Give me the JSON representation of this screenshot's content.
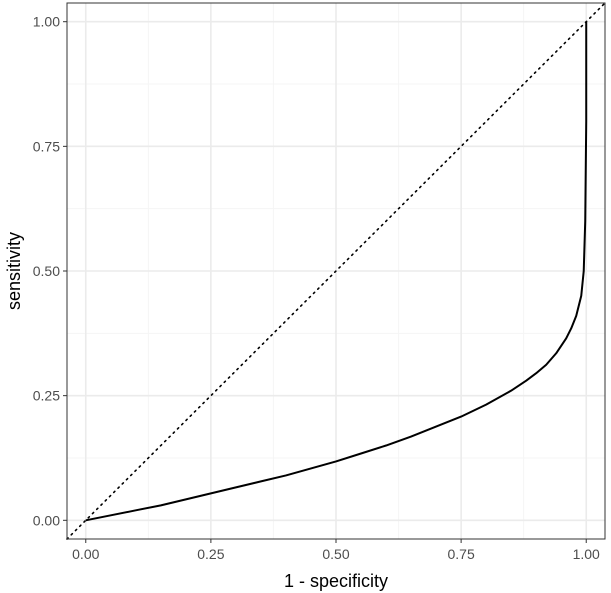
{
  "chart_data": {
    "type": "line",
    "title": "",
    "xlabel": "1 - specificity",
    "ylabel": "sensitivity",
    "xlim": [
      -0.0375,
      1.0375
    ],
    "ylim": [
      -0.0375,
      1.0375
    ],
    "x_ticks": [
      0.0,
      0.25,
      0.5,
      0.75,
      1.0
    ],
    "x_tick_labels": [
      "0.00",
      "0.25",
      "0.50",
      "0.75",
      "1.00"
    ],
    "y_ticks": [
      0.0,
      0.25,
      0.5,
      0.75,
      1.0
    ],
    "y_tick_labels": [
      "0.00",
      "0.25",
      "0.50",
      "0.75",
      "1.00"
    ],
    "grid": true,
    "legend": "none",
    "reference_line": {
      "style": "dotted",
      "x": [
        -0.0375,
        1.0375
      ],
      "y": [
        -0.0375,
        1.0375
      ]
    },
    "series": [
      {
        "style": "solid",
        "x": [
          0.0,
          0.05,
          0.1,
          0.15,
          0.2,
          0.25,
          0.3,
          0.35,
          0.4,
          0.45,
          0.5,
          0.55,
          0.6,
          0.65,
          0.7,
          0.75,
          0.8,
          0.85,
          0.88,
          0.9,
          0.92,
          0.94,
          0.96,
          0.97,
          0.98,
          0.99,
          0.995,
          0.998,
          1.0,
          1.0
        ],
        "y": [
          0.0,
          0.01,
          0.02,
          0.03,
          0.042,
          0.054,
          0.066,
          0.078,
          0.09,
          0.104,
          0.118,
          0.134,
          0.15,
          0.168,
          0.188,
          0.208,
          0.232,
          0.26,
          0.28,
          0.295,
          0.312,
          0.335,
          0.365,
          0.385,
          0.41,
          0.45,
          0.5,
          0.6,
          0.8,
          1.0
        ]
      }
    ]
  },
  "colors": {
    "background": "#ffffff",
    "grid_major": "#ebebeb",
    "grid_minor": "#f5f5f5",
    "panel_border": "#333333",
    "series": "#000000",
    "tick_text": "#4d4d4d"
  }
}
